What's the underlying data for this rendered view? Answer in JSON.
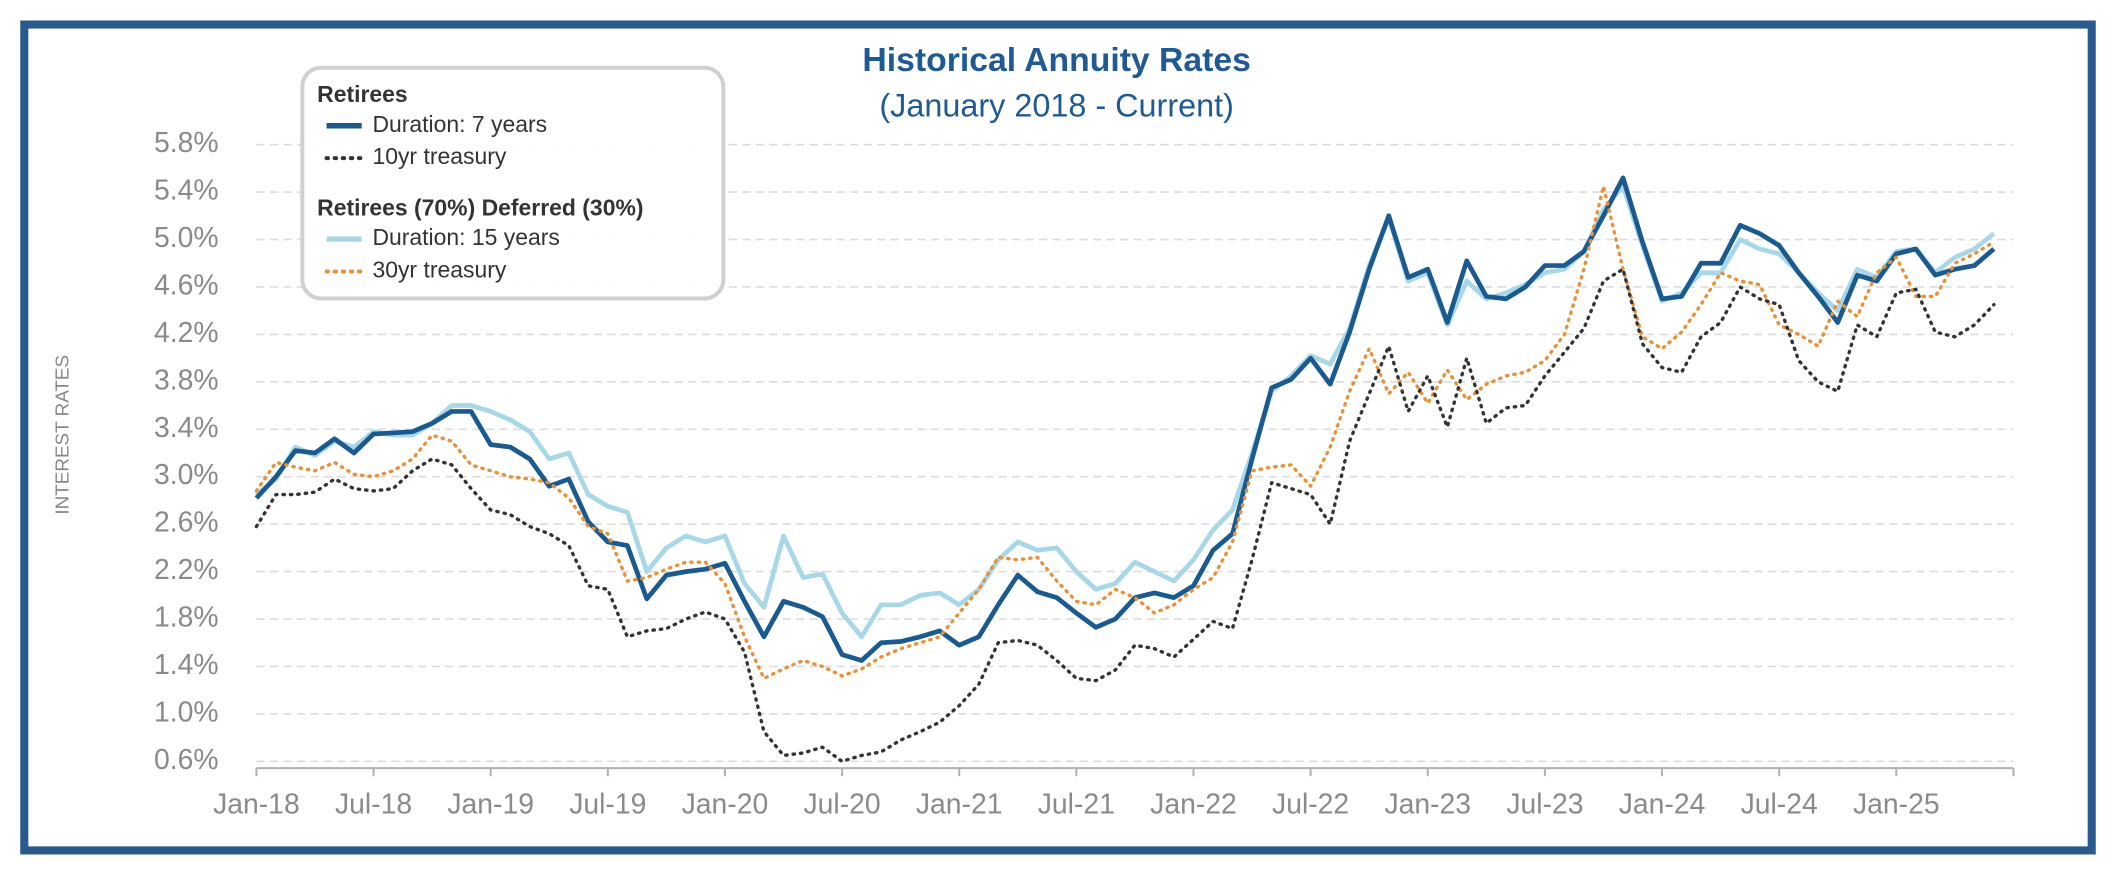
{
  "chart_data": {
    "type": "line",
    "title": "Historical Annuity Rates",
    "subtitle": "(January 2018 - Current)",
    "y_label": "INTEREST RATES",
    "legend_groups": [
      "Retirees",
      "Retirees (70%) Deferred (30%)"
    ],
    "categories": [
      "Jan-18",
      null,
      null,
      null,
      null,
      null,
      "Jul-18",
      null,
      null,
      null,
      null,
      null,
      "Jan-19",
      null,
      null,
      null,
      null,
      null,
      "Jul-19",
      null,
      null,
      null,
      null,
      null,
      "Jan-20",
      null,
      null,
      null,
      null,
      null,
      "Jul-20",
      null,
      null,
      null,
      null,
      null,
      "Jan-21",
      null,
      null,
      null,
      null,
      null,
      "Jul-21",
      null,
      null,
      null,
      null,
      null,
      "Jan-22",
      null,
      null,
      null,
      null,
      null,
      "Jul-22",
      null,
      null,
      null,
      null,
      null,
      "Jan-23",
      null,
      null,
      null,
      null,
      null,
      "Jul-23",
      null,
      null,
      null,
      null,
      null,
      "Jan-24",
      null,
      null,
      null,
      null,
      null,
      "Jul-24",
      null,
      null,
      null,
      null,
      null,
      "Jan-25",
      null,
      null,
      null,
      null,
      null
    ],
    "series": [
      {
        "name": "Duration: 7 years",
        "group": 0,
        "color": "#1a5a8f",
        "dotted": false,
        "width": 3.5,
        "values": [
          2.82,
          3.0,
          3.22,
          3.2,
          3.32,
          3.2,
          3.36,
          3.37,
          3.38,
          3.45,
          3.55,
          3.55,
          3.27,
          3.25,
          3.15,
          2.92,
          2.98,
          2.62,
          2.45,
          2.42,
          1.97,
          2.17,
          2.2,
          2.22,
          2.27,
          1.95,
          1.65,
          1.95,
          1.9,
          1.82,
          1.5,
          1.45,
          1.6,
          1.61,
          1.65,
          1.7,
          1.58,
          1.65,
          1.92,
          2.17,
          2.03,
          1.98,
          1.85,
          1.73,
          1.8,
          1.98,
          2.02,
          1.98,
          2.08,
          2.38,
          2.52,
          3.15,
          3.75,
          3.82,
          4.0,
          3.78,
          4.22,
          4.75,
          5.2,
          4.68,
          4.75,
          4.3,
          4.82,
          4.52,
          4.5,
          4.6,
          4.78,
          4.78,
          4.9,
          5.2,
          5.52,
          4.98,
          4.5,
          4.52,
          4.8,
          4.8,
          5.12,
          5.05,
          4.95,
          4.72,
          4.52,
          4.3,
          4.7,
          4.65,
          4.88,
          4.92,
          4.7,
          4.75,
          4.78,
          4.92
        ]
      },
      {
        "name": "10yr treasury",
        "group": 0,
        "color": "#333333",
        "dotted": true,
        "width": 2.5,
        "values": [
          2.58,
          2.85,
          2.85,
          2.87,
          2.98,
          2.9,
          2.88,
          2.9,
          3.05,
          3.15,
          3.1,
          2.9,
          2.72,
          2.68,
          2.58,
          2.52,
          2.42,
          2.08,
          2.05,
          1.65,
          1.7,
          1.72,
          1.8,
          1.86,
          1.8,
          1.52,
          0.85,
          0.65,
          0.67,
          0.72,
          0.6,
          0.65,
          0.68,
          0.78,
          0.85,
          0.93,
          1.07,
          1.25,
          1.6,
          1.62,
          1.58,
          1.45,
          1.3,
          1.28,
          1.37,
          1.58,
          1.55,
          1.48,
          1.63,
          1.78,
          1.72,
          2.3,
          2.95,
          2.9,
          2.85,
          2.6,
          3.3,
          3.7,
          4.1,
          3.55,
          3.85,
          3.42,
          4.0,
          3.45,
          3.58,
          3.6,
          3.85,
          4.05,
          4.25,
          4.65,
          4.75,
          4.12,
          3.92,
          3.88,
          4.18,
          4.3,
          4.6,
          4.5,
          4.45,
          3.98,
          3.8,
          3.72,
          4.28,
          4.18,
          4.55,
          4.58,
          4.22,
          4.18,
          4.28,
          4.45
        ]
      },
      {
        "name": "Duration: 15 years",
        "group": 1,
        "color": "#a8d8e8",
        "dotted": false,
        "width": 3.5,
        "values": [
          2.85,
          2.98,
          3.25,
          3.18,
          3.3,
          3.25,
          3.38,
          3.35,
          3.35,
          3.45,
          3.6,
          3.6,
          3.55,
          3.48,
          3.38,
          3.15,
          3.2,
          2.85,
          2.75,
          2.7,
          2.2,
          2.4,
          2.5,
          2.45,
          2.5,
          2.1,
          1.9,
          2.5,
          2.15,
          2.18,
          1.85,
          1.65,
          1.92,
          1.92,
          2.0,
          2.02,
          1.92,
          2.05,
          2.3,
          2.45,
          2.38,
          2.4,
          2.2,
          2.05,
          2.1,
          2.28,
          2.2,
          2.12,
          2.3,
          2.55,
          2.72,
          3.2,
          3.72,
          3.85,
          4.02,
          3.95,
          4.25,
          4.78,
          5.18,
          4.65,
          4.72,
          4.28,
          4.65,
          4.5,
          4.55,
          4.62,
          4.72,
          4.75,
          4.9,
          5.25,
          5.45,
          4.95,
          4.48,
          4.55,
          4.72,
          4.72,
          5.0,
          4.92,
          4.88,
          4.72,
          4.55,
          4.4,
          4.75,
          4.68,
          4.9,
          4.92,
          4.72,
          4.85,
          4.92,
          5.05
        ]
      },
      {
        "name": "30yr treasury",
        "group": 1,
        "color": "#e8913a",
        "dotted": true,
        "width": 2.5,
        "values": [
          2.88,
          3.12,
          3.08,
          3.05,
          3.12,
          3.02,
          3.0,
          3.05,
          3.15,
          3.35,
          3.3,
          3.1,
          3.05,
          3.0,
          2.98,
          2.95,
          2.82,
          2.58,
          2.52,
          2.12,
          2.15,
          2.22,
          2.28,
          2.28,
          2.1,
          1.65,
          1.3,
          1.38,
          1.45,
          1.4,
          1.32,
          1.38,
          1.48,
          1.55,
          1.6,
          1.65,
          1.85,
          2.05,
          2.32,
          2.3,
          2.32,
          2.12,
          1.95,
          1.92,
          2.05,
          1.98,
          1.85,
          1.92,
          2.05,
          2.15,
          2.45,
          3.05,
          3.08,
          3.1,
          2.92,
          3.25,
          3.72,
          4.08,
          3.7,
          3.88,
          3.62,
          3.9,
          3.65,
          3.78,
          3.85,
          3.88,
          3.98,
          4.2,
          4.75,
          5.45,
          4.75,
          4.18,
          4.08,
          4.22,
          4.45,
          4.72,
          4.65,
          4.62,
          4.28,
          4.2,
          4.1,
          4.48,
          4.35,
          4.72,
          4.85,
          4.52,
          4.52,
          4.8,
          4.88,
          4.98
        ]
      }
    ],
    "ylim": [
      0.6,
      5.8
    ],
    "yticks": [
      {
        "value": 0.6,
        "label": "0.6%"
      },
      {
        "value": 1.0,
        "label": "1.0%"
      },
      {
        "value": 1.4,
        "label": "1.4%"
      },
      {
        "value": 1.8,
        "label": "1.8%"
      },
      {
        "value": 2.2,
        "label": "2.2%"
      },
      {
        "value": 2.6,
        "label": "2.6%"
      },
      {
        "value": 3.0,
        "label": "3.0%"
      },
      {
        "value": 3.4,
        "label": "3.4%"
      },
      {
        "value": 3.8,
        "label": "3.8%"
      },
      {
        "value": 4.2,
        "label": "4.2%"
      },
      {
        "value": 4.6,
        "label": "4.6%"
      },
      {
        "value": 5.0,
        "label": "5.0%"
      },
      {
        "value": 5.4,
        "label": "5.4%"
      },
      {
        "value": 5.8,
        "label": "5.8%"
      }
    ],
    "grid": true
  }
}
